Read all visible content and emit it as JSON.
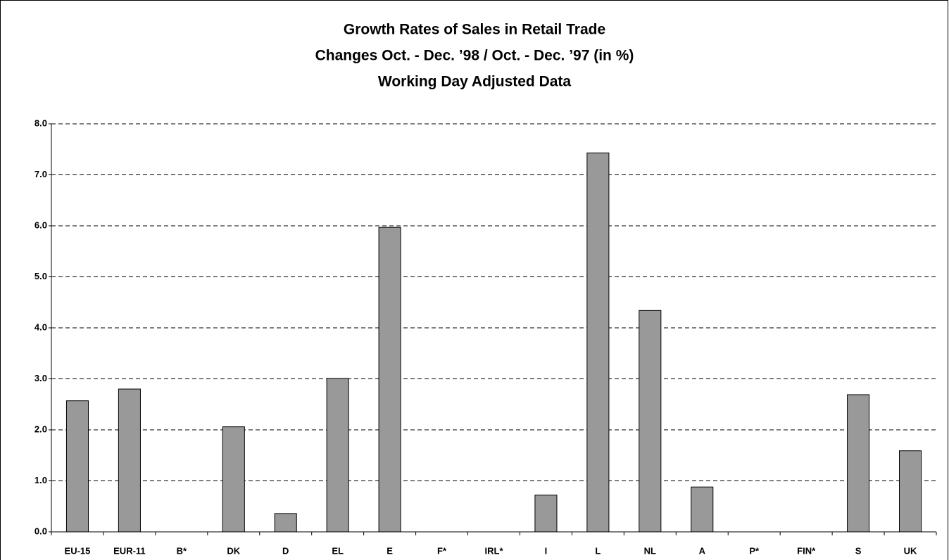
{
  "chart_data": {
    "type": "bar",
    "title": [
      "Growth Rates of Sales in Retail Trade",
      "Changes Oct. - Dec. ’98 / Oct. - Dec. ’97 (in %)",
      "Working Day Adjusted Data"
    ],
    "categories": [
      "EU-15",
      "EUR-11",
      "B*",
      "DK",
      "D",
      "EL",
      "E",
      "F*",
      "IRL*",
      "I",
      "L",
      "NL",
      "A",
      "P*",
      "FIN*",
      "S",
      "UK"
    ],
    "values": [
      2.57,
      2.8,
      null,
      2.06,
      0.36,
      3.01,
      5.97,
      null,
      null,
      0.72,
      7.43,
      4.34,
      0.88,
      null,
      null,
      2.69,
      1.59
    ],
    "color": "#999999",
    "ylim": [
      0,
      8
    ],
    "yticks": [
      {
        "value": 0,
        "label": "0.0"
      },
      {
        "value": 1,
        "label": "1.0"
      },
      {
        "value": 2,
        "label": "2.0"
      },
      {
        "value": 3,
        "label": "3.0"
      },
      {
        "value": 4,
        "label": "4.0"
      },
      {
        "value": 5,
        "label": "5.0"
      },
      {
        "value": 6,
        "label": "6.0"
      },
      {
        "value": 7,
        "label": "7.0"
      },
      {
        "value": 8,
        "label": "8.0"
      }
    ],
    "grid": true
  }
}
